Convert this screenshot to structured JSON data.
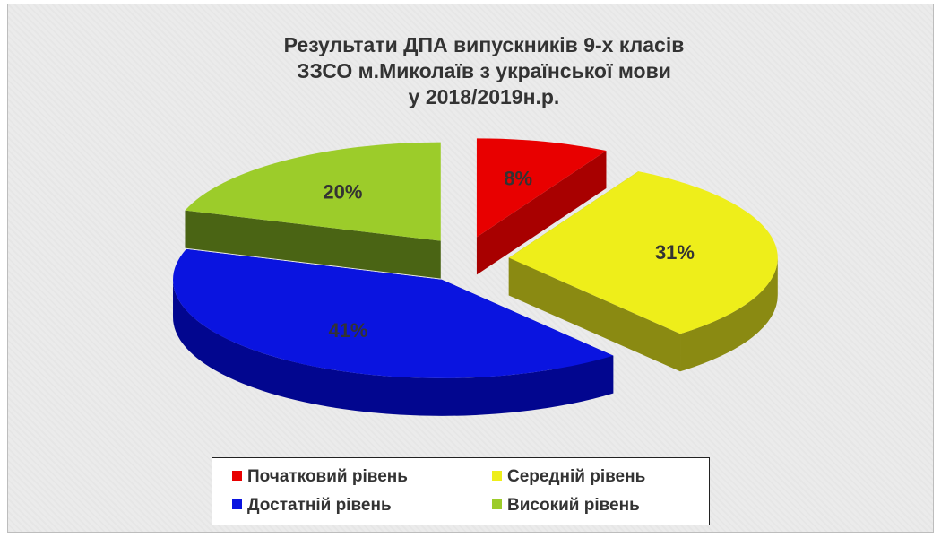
{
  "chart_data": {
    "type": "pie",
    "title_lines": [
      "Результати ДПА випускників 9-х класів",
      "ЗЗСО м.Миколаїв з української мови",
      "у 2018/2019н.р."
    ],
    "slices": [
      {
        "label": "Початковий рівень",
        "value": 8,
        "data_label": "8%",
        "color": "#e80000",
        "side_color": "#a80000"
      },
      {
        "label": "Середній рівень",
        "value": 31,
        "data_label": "31%",
        "color": "#eeee1a",
        "side_color": "#8a8a12"
      },
      {
        "label": "Достатній рівень",
        "value": 41,
        "data_label": "41%",
        "color": "#0a14e0",
        "side_color": "#02068f"
      },
      {
        "label": "Високий рівень",
        "value": 20,
        "data_label": "20%",
        "color": "#9ccc2a",
        "side_color": "#4a6414"
      }
    ],
    "three_d": true,
    "exploded": true,
    "legend_position": "bottom"
  }
}
